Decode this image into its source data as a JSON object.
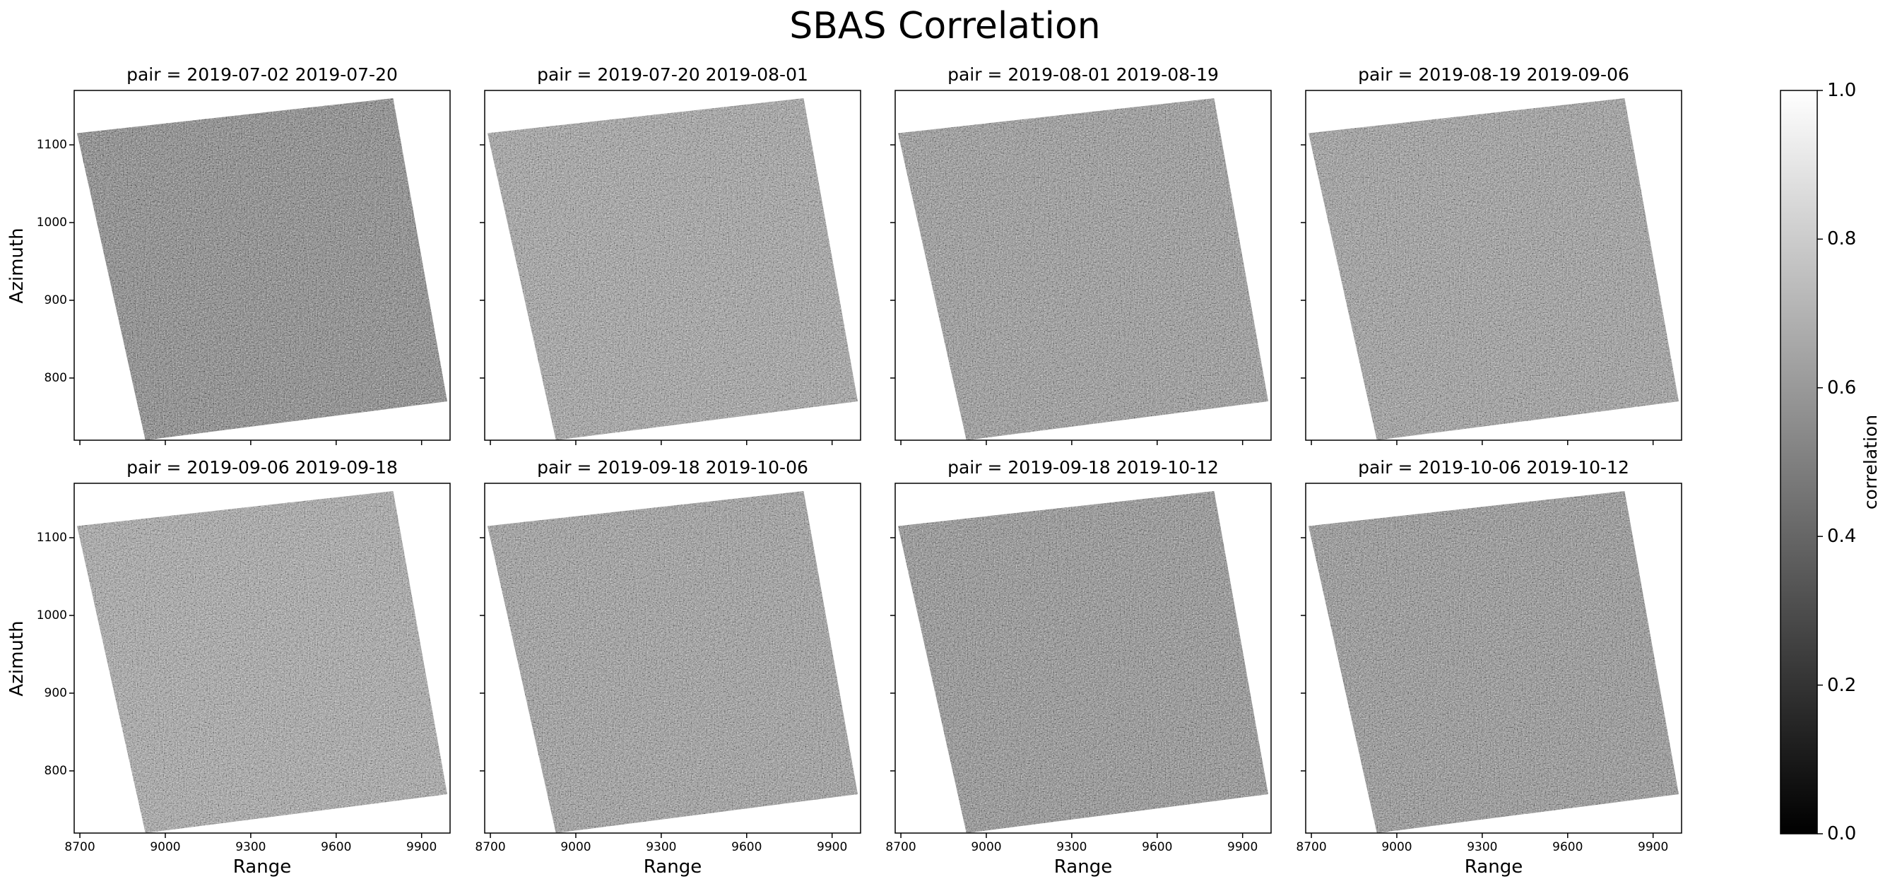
{
  "figure": {
    "title": "SBAS Correlation",
    "colorbar": {
      "label": "correlation",
      "ticks": [
        "0.0",
        "0.2",
        "0.4",
        "0.6",
        "0.8",
        "1.0"
      ],
      "cmap_from": "#000000",
      "cmap_to": "#ffffff"
    }
  },
  "chart_data": {
    "type": "heatmap",
    "title": "SBAS Correlation",
    "xlabel": "Range",
    "ylabel": "Azimuth",
    "xlim": [
      8680,
      10000
    ],
    "ylim": [
      720,
      1170
    ],
    "xticks": [
      "8700",
      "9000",
      "9300",
      "9600",
      "9900"
    ],
    "yticks": [
      "800",
      "900",
      "1000",
      "1100"
    ],
    "value_range": [
      0.0,
      1.0
    ],
    "colorbar_label": "correlation",
    "colormap": "grayscale",
    "panels": [
      {
        "title": "pair = 2019-07-02 2019-07-20",
        "mean_correlation": 0.5
      },
      {
        "title": "pair = 2019-07-20 2019-08-01",
        "mean_correlation": 0.62
      },
      {
        "title": "pair = 2019-08-01 2019-08-19",
        "mean_correlation": 0.58
      },
      {
        "title": "pair = 2019-08-19 2019-09-06",
        "mean_correlation": 0.6
      },
      {
        "title": "pair = 2019-09-06 2019-09-18",
        "mean_correlation": 0.64
      },
      {
        "title": "pair = 2019-09-18 2019-10-06",
        "mean_correlation": 0.6
      },
      {
        "title": "pair = 2019-09-18 2019-10-12",
        "mean_correlation": 0.55
      },
      {
        "title": "pair = 2019-10-06 2019-10-12",
        "mean_correlation": 0.56
      }
    ]
  }
}
